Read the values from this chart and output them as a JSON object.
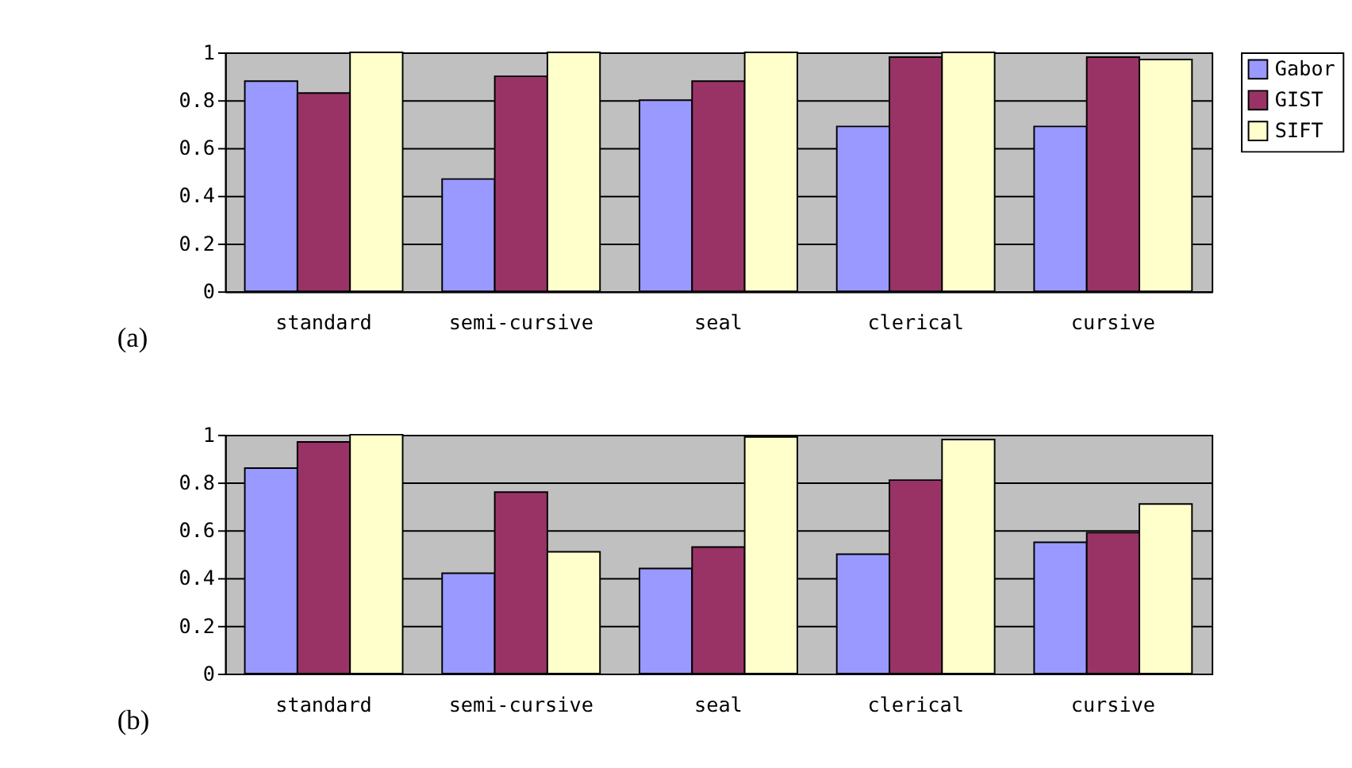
{
  "chart_data": [
    {
      "type": "bar",
      "annotations": [
        "(a)"
      ],
      "categories": [
        "standard",
        "semi-cursive",
        "seal",
        "clerical",
        "cursive"
      ],
      "ylim": [
        0,
        1
      ],
      "yticks": [
        0,
        0.2,
        0.4,
        0.6,
        0.8,
        1
      ],
      "grid": "y",
      "legend": "right",
      "series": [
        {
          "name": "Gabor",
          "color": "#9999ff",
          "values": [
            0.88,
            0.47,
            0.8,
            0.69,
            0.69
          ]
        },
        {
          "name": "GIST",
          "color": "#993366",
          "values": [
            0.83,
            0.9,
            0.88,
            0.98,
            0.98
          ]
        },
        {
          "name": "SIFT",
          "color": "#ffffcc",
          "values": [
            1.0,
            1.0,
            1.0,
            1.0,
            0.97
          ]
        }
      ]
    },
    {
      "type": "bar",
      "annotations": [
        "(b)"
      ],
      "categories": [
        "standard",
        "semi-cursive",
        "seal",
        "clerical",
        "cursive"
      ],
      "ylim": [
        0,
        1
      ],
      "yticks": [
        0,
        0.2,
        0.4,
        0.6,
        0.8,
        1
      ],
      "grid": "y",
      "legend": "right",
      "series": [
        {
          "name": "Gabor",
          "color": "#9999ff",
          "values": [
            0.86,
            0.42,
            0.44,
            0.5,
            0.55
          ]
        },
        {
          "name": "GIST",
          "color": "#993366",
          "values": [
            0.97,
            0.76,
            0.53,
            0.81,
            0.59
          ]
        },
        {
          "name": "SIFT",
          "color": "#ffffcc",
          "values": [
            1.0,
            0.51,
            0.99,
            0.98,
            0.71
          ]
        }
      ]
    }
  ]
}
